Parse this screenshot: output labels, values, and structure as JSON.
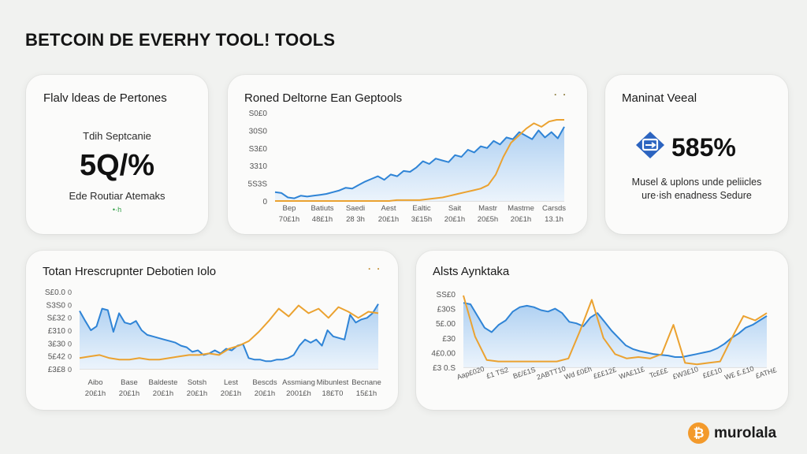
{
  "page": {
    "title": "BETCOIN DE EVERHY TOOL! TOOLS"
  },
  "colors": {
    "blue": "#2f84d6",
    "orange": "#eba230",
    "fill_top": "#a9cdf1",
    "fill_bottom": "#eaf3fc",
    "green": "#2e9e44"
  },
  "card1": {
    "title": "Flalv ldeas de Pertones",
    "subtitle": "Tdih Septcanie",
    "value": "5Q/%",
    "footer": "Ede Routiar Atemaks",
    "spark": "•·h"
  },
  "card3": {
    "title": "Maninat Veeal",
    "value": "585%",
    "icon": "exchange-badge-icon",
    "desc1": "Musel & uplons unde peliicles",
    "desc2": "ure·ish enadness Sedure"
  },
  "brand": {
    "name": "murolala",
    "icon": "bitcoin-icon",
    "icon_glyph": "₿"
  },
  "chart_data": [
    {
      "type": "area",
      "title": "Roned Deltorne Ean Geptools",
      "dots": "· ·",
      "y_tick_labels": [
        "S0£0",
        "30S0",
        "S3£0",
        "3310",
        "5S3S",
        "0"
      ],
      "x_tick_labels": [
        [
          "Bep",
          "70£1h"
        ],
        [
          "Batiuts",
          "48£1h"
        ],
        [
          "Saedi",
          "28 3h"
        ],
        [
          "Aest",
          "20£1h"
        ],
        [
          "Ealtic",
          "3£15h"
        ],
        [
          "Sait",
          "20£1h"
        ],
        [
          "Mastr",
          "20£5h"
        ],
        [
          "Mastme",
          "20£1h"
        ],
        [
          "Carsds",
          "13.1h"
        ]
      ],
      "ylim": [
        0,
        100
      ],
      "series": [
        {
          "color": "#2f84d6",
          "fill": true,
          "values": [
            10,
            9,
            4,
            3,
            6,
            5,
            6,
            7,
            8,
            10,
            12,
            15,
            14,
            18,
            22,
            25,
            28,
            24,
            30,
            28,
            34,
            33,
            38,
            45,
            42,
            48,
            46,
            44,
            52,
            50,
            58,
            55,
            62,
            60,
            68,
            64,
            72,
            70,
            78,
            74,
            70,
            80,
            72,
            78,
            71,
            84
          ]
        },
        {
          "color": "#eba230",
          "fill": false,
          "values": [
            0,
            0,
            0,
            0,
            0,
            0,
            0,
            0,
            0,
            0,
            0,
            0,
            0,
            0,
            0,
            0,
            1,
            1,
            1,
            1,
            2,
            3,
            4,
            6,
            8,
            10,
            12,
            14,
            18,
            30,
            50,
            66,
            74,
            82,
            88,
            84,
            90,
            92,
            92
          ]
        }
      ]
    },
    {
      "type": "area",
      "title": "Totan Hrescrupnter Debotien Iolo",
      "dots": "· ·",
      "y_tick_labels": [
        "S£0.0",
        "S3S0",
        "S£32",
        "£310",
        "3£30",
        "5£42",
        "£3£8"
      ],
      "y_tick_right": [
        "0",
        "0",
        "0",
        "0",
        "0",
        "0",
        "0"
      ],
      "x_tick_labels": [
        [
          "Aibo",
          "20£1h"
        ],
        [
          "Base",
          "20£1h"
        ],
        [
          "Baldeste",
          "20£1h"
        ],
        [
          "Sotsh",
          "20£1h"
        ],
        [
          "Lest",
          "20£1h"
        ],
        [
          "Bescds",
          "20£1h"
        ],
        [
          "Assmiang",
          "2001£h"
        ],
        [
          "Mibunlest",
          "18£T0"
        ],
        [
          "Becnane",
          "15£1h"
        ]
      ],
      "ylim": [
        0,
        100
      ],
      "series": [
        {
          "color": "#2f84d6",
          "fill": true,
          "values": [
            75,
            62,
            50,
            55,
            78,
            76,
            48,
            72,
            60,
            58,
            62,
            50,
            44,
            42,
            40,
            38,
            36,
            34,
            30,
            28,
            22,
            24,
            18,
            20,
            24,
            20,
            26,
            24,
            30,
            32,
            14,
            12,
            12,
            10,
            10,
            12,
            12,
            14,
            18,
            30,
            38,
            34,
            38,
            30,
            50,
            42,
            40,
            38,
            70,
            60,
            64,
            66,
            72,
            84
          ]
        },
        {
          "color": "#eba230",
          "fill": false,
          "values": [
            14,
            16,
            18,
            14,
            12,
            12,
            14,
            12,
            12,
            14,
            16,
            18,
            18,
            20,
            18,
            26,
            30,
            36,
            48,
            62,
            78,
            68,
            82,
            72,
            78,
            66,
            80,
            74,
            66,
            74,
            72
          ]
        }
      ]
    },
    {
      "type": "area",
      "title": "Alsts Aynktaka",
      "y_tick_labels": [
        "SS£0",
        "£30S",
        "5£.00",
        "£30",
        "4£0.00",
        "£3 0.S"
      ],
      "x_tick_labels": [
        "Aap£020",
        "£1 TS2",
        "B£/£1S",
        "2ABTT10",
        "Wd £0£h",
        "£££12£",
        "WA£11£",
        "Tc£££",
        "£W3£10",
        "£££10",
        "W£ £.£10",
        "£ATH£"
      ],
      "ylim": [
        0,
        100
      ],
      "series": [
        {
          "color": "#2f84d6",
          "fill": true,
          "values": [
            88,
            86,
            70,
            54,
            48,
            58,
            64,
            76,
            82,
            84,
            82,
            78,
            76,
            80,
            74,
            62,
            60,
            56,
            68,
            74,
            62,
            50,
            40,
            30,
            25,
            22,
            20,
            18,
            17,
            16,
            14,
            14,
            16,
            18,
            20,
            22,
            26,
            32,
            40,
            46,
            54,
            58,
            64,
            70
          ]
        },
        {
          "color": "#eba230",
          "fill": false,
          "values": [
            98,
            42,
            10,
            8,
            8,
            8,
            8,
            8,
            8,
            12,
            50,
            92,
            40,
            18,
            12,
            14,
            12,
            18,
            58,
            6,
            4,
            6,
            8,
            40,
            70,
            64,
            74
          ]
        }
      ]
    }
  ]
}
